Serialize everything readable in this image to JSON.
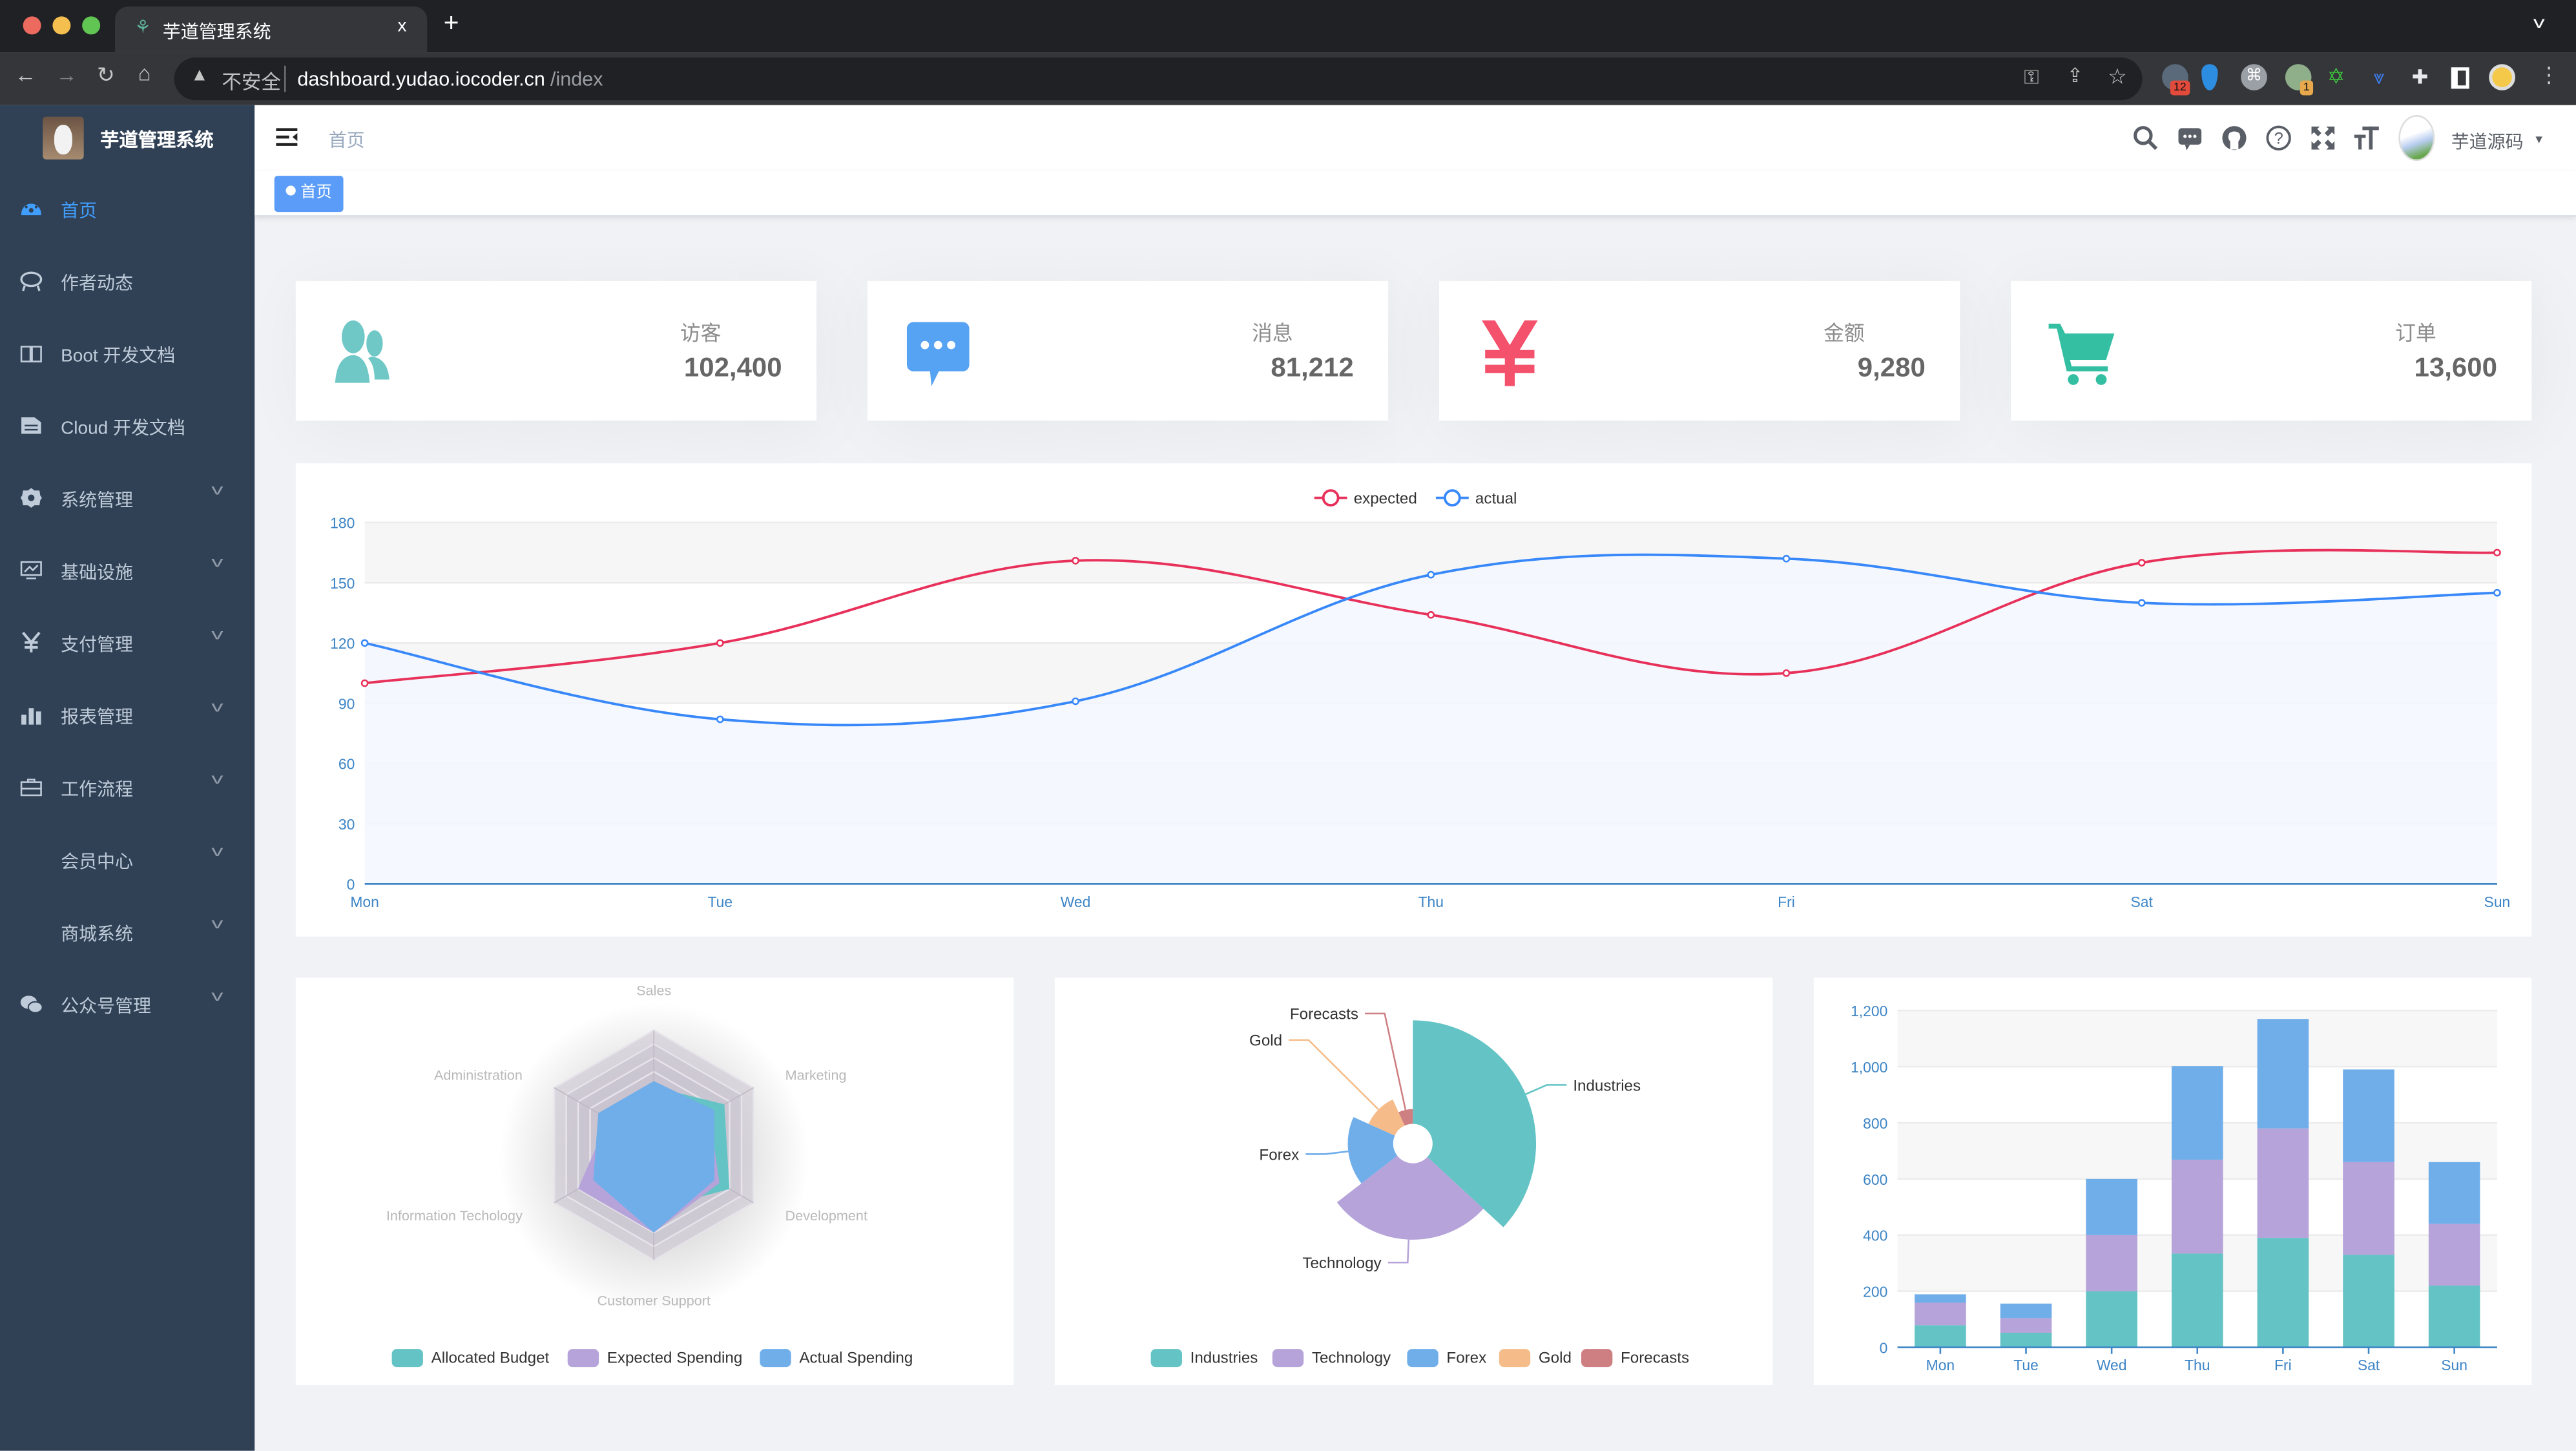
{
  "browser": {
    "tab_title": "芋道管理系统",
    "tab_close": "x",
    "new_tab": "+",
    "security_label": "不安全",
    "url_host": "dashboard.yudao.iocoder.cn",
    "url_path": "/index",
    "extension_badges": [
      "12",
      "1"
    ]
  },
  "sidebar": {
    "title": "芋道管理系统",
    "items": [
      {
        "label": "首页",
        "icon": "dashboard-icon",
        "expandable": false,
        "active": true
      },
      {
        "label": "作者动态",
        "icon": "chat-bubble-icon",
        "expandable": false
      },
      {
        "label": "Boot 开发文档",
        "icon": "book-icon",
        "expandable": false
      },
      {
        "label": "Cloud 开发文档",
        "icon": "document-icon",
        "expandable": false
      },
      {
        "label": "系统管理",
        "icon": "gear-icon",
        "expandable": true
      },
      {
        "label": "基础设施",
        "icon": "monitor-icon",
        "expandable": true
      },
      {
        "label": "支付管理",
        "icon": "yen-icon",
        "expandable": true
      },
      {
        "label": "报表管理",
        "icon": "bar-chart-icon",
        "expandable": true
      },
      {
        "label": "工作流程",
        "icon": "briefcase-icon",
        "expandable": true
      },
      {
        "label": "会员中心",
        "icon": "",
        "expandable": true
      },
      {
        "label": "商城系统",
        "icon": "",
        "expandable": true
      },
      {
        "label": "公众号管理",
        "icon": "wechat-icon",
        "expandable": true
      }
    ]
  },
  "navbar": {
    "breadcrumb": "首页",
    "username": "芋道源码",
    "icons": [
      "search-icon",
      "message-icon",
      "github-icon",
      "help-icon",
      "fullscreen-icon",
      "font-size-icon"
    ]
  },
  "tags_view": {
    "active_tag": "首页"
  },
  "panels": [
    {
      "label": "访客",
      "value": "102,400",
      "icon": "people-icon",
      "color": "#40c9c6"
    },
    {
      "label": "消息",
      "value": "81,212",
      "icon": "message-icon",
      "color": "#36a3f7"
    },
    {
      "label": "金额",
      "value": "9,280",
      "icon": "money-icon",
      "color": "#f4516c"
    },
    {
      "label": "订单",
      "value": "13,600",
      "icon": "shopping-cart-icon",
      "color": "#34bfa3"
    }
  ],
  "chart_data": [
    {
      "type": "line",
      "categories": [
        "Mon",
        "Tue",
        "Wed",
        "Thu",
        "Fri",
        "Sat",
        "Sun"
      ],
      "series": [
        {
          "name": "expected",
          "values": [
            100,
            120,
            161,
            134,
            105,
            160,
            165
          ],
          "color": "#e8315a"
        },
        {
          "name": "actual",
          "values": [
            120,
            82,
            91,
            154,
            162,
            140,
            145
          ],
          "color": "#3888fa",
          "area": true
        }
      ],
      "ylim": [
        0,
        180
      ],
      "yticks": [
        0,
        30,
        60,
        90,
        120,
        150,
        180
      ],
      "legend": "top-center",
      "smooth": true,
      "grid": true
    },
    {
      "type": "radar",
      "indicators": [
        {
          "name": "Sales",
          "max": 10000
        },
        {
          "name": "Administration",
          "max": 20000
        },
        {
          "name": "Information Techology",
          "max": 20000
        },
        {
          "name": "Customer Support",
          "max": 20000
        },
        {
          "name": "Development",
          "max": 20000
        },
        {
          "name": "Marketing",
          "max": 20000
        }
      ],
      "series": [
        {
          "name": "Allocated Budget",
          "values": [
            5000,
            7000,
            12000,
            11000,
            15000,
            14000
          ],
          "color": "#63c3c5"
        },
        {
          "name": "Expected Spending",
          "values": [
            4000,
            9000,
            15000,
            15000,
            13000,
            11000
          ],
          "color": "#b5a3d9"
        },
        {
          "name": "Actual Spending",
          "values": [
            5500,
            11000,
            12000,
            15000,
            12000,
            12000
          ],
          "color": "#70aeea"
        }
      ],
      "legend": "bottom-center"
    },
    {
      "type": "pie",
      "rose": "radius",
      "slices": [
        {
          "name": "Industries",
          "value": 320,
          "color": "#63c3c5"
        },
        {
          "name": "Technology",
          "value": 240,
          "color": "#b5a3d9"
        },
        {
          "name": "Forex",
          "value": 149,
          "color": "#70aeea"
        },
        {
          "name": "Gold",
          "value": 100,
          "color": "#f5bc8a"
        },
        {
          "name": "Forecasts",
          "value": 59,
          "color": "#ce7f82"
        }
      ],
      "legend": "bottom-center"
    },
    {
      "type": "bar",
      "stacked": true,
      "categories": [
        "Mon",
        "Tue",
        "Wed",
        "Thu",
        "Fri",
        "Sat",
        "Sun"
      ],
      "series": [
        {
          "values": [
            79,
            52,
            200,
            334,
            390,
            330,
            220
          ],
          "color": "#63c3c5"
        },
        {
          "values": [
            80,
            52,
            200,
            334,
            390,
            330,
            220
          ],
          "color": "#b5a3d9"
        },
        {
          "values": [
            30,
            52,
            200,
            334,
            390,
            330,
            220
          ],
          "color": "#70aeea"
        }
      ],
      "ylim": [
        0,
        1200
      ],
      "yticks": [
        "0",
        "200",
        "400",
        "600",
        "800",
        "1,000",
        "1,200"
      ],
      "grid": true
    }
  ]
}
